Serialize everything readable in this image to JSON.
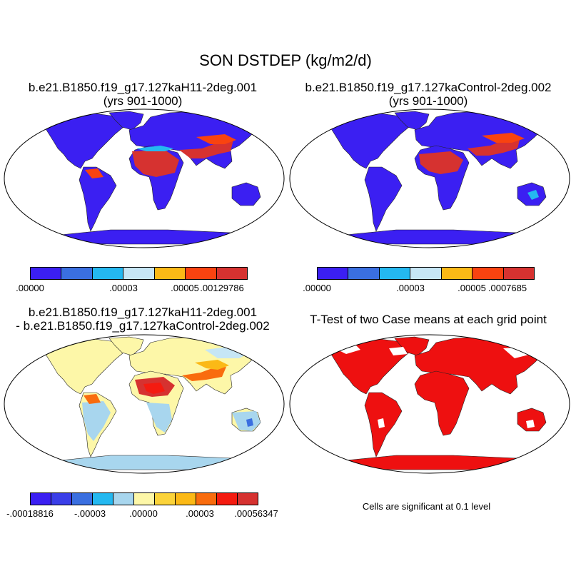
{
  "title": "SON DSTDEP (kg/m2/d)",
  "panels": {
    "p1": {
      "title_line1": "b.e21.B1850.f19_g17.127kaH11-2deg.001",
      "title_line2": "(yrs 901-1000)"
    },
    "p2": {
      "title_line1": "b.e21.B1850.f19_g17.127kaControl-2deg.002",
      "title_line2": "(yrs 901-1000)"
    },
    "p3": {
      "title_line1": "b.e21.B1850.f19_g17.127kaH11-2deg.001",
      "title_line2": "- b.e21.B1850.f19_g17.127kaControl-2deg.002"
    },
    "p4": {
      "title_line1": "T-Test of two Case means at each grid point",
      "note": "Cells are significant at 0.1 level"
    }
  },
  "chart_data": [
    {
      "type": "heatmap",
      "title": "b.e21.B1850.f19_g17.127kaH11-2deg.001 (yrs 901-1000)",
      "colorbar": {
        "colors": [
          "#3b1ff2",
          "#3a6fe0",
          "#24b8f0",
          "#c6e6f5",
          "#fbb916",
          "#f94310",
          "#d63230"
        ],
        "tick_labels": [
          ".00000",
          ".00003",
          ".00005",
          ".00129786"
        ]
      }
    },
    {
      "type": "heatmap",
      "title": "b.e21.B1850.f19_g17.127kaControl-2deg.002 (yrs 901-1000)",
      "colorbar": {
        "colors": [
          "#3b1ff2",
          "#3a6fe0",
          "#24b8f0",
          "#c6e6f5",
          "#fbb916",
          "#f94310",
          "#d63230"
        ],
        "tick_labels": [
          ".00000",
          ".00003",
          ".00005",
          ".0007685"
        ]
      }
    },
    {
      "type": "heatmap",
      "title": "b.e21.B1850.f19_g17.127kaH11-2deg.001 - b.e21.B1850.f19_g17.127kaControl-2deg.002",
      "colorbar": {
        "colors": [
          "#3b1ff2",
          "#3a3ee8",
          "#3a6fe0",
          "#24b8f0",
          "#a8d6ee",
          "#fdf7a8",
          "#fbd33a",
          "#fbb916",
          "#f96c0e",
          "#f41b10",
          "#d63230"
        ],
        "tick_labels": [
          "-.00018816",
          "-.00003",
          ".00000",
          ".00003",
          ".00056347"
        ]
      }
    },
    {
      "type": "heatmap",
      "title": "T-Test of two Case means at each grid point",
      "significant_color": "#ee1010",
      "note": "Cells are significant at 0.1 level"
    }
  ]
}
